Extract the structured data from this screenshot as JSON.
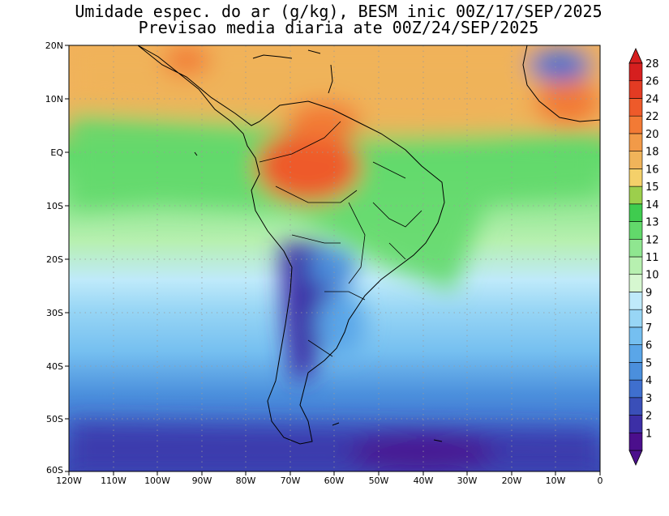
{
  "title": {
    "line1": "Umidade espec. do ar (g/kg), BESM inic 00Z/17/SEP/2025",
    "line2": "Previsao media diaria ate 00Z/24/SEP/2025"
  },
  "map": {
    "lon_range": [
      -120,
      0
    ],
    "lat_range": [
      -60,
      20
    ],
    "grid": "dotted",
    "lat_labels": [
      "20N",
      "10N",
      "EQ",
      "10S",
      "20S",
      "30S",
      "40S",
      "50S",
      "60S"
    ],
    "lon_labels": [
      "120W",
      "110W",
      "100W",
      "90W",
      "80W",
      "70W",
      "60W",
      "50W",
      "40W",
      "30W",
      "20W",
      "10W",
      "0"
    ]
  },
  "colorbar": {
    "labels": [
      "1",
      "2",
      "3",
      "4",
      "5",
      "6",
      "7",
      "8",
      "9",
      "10",
      "11",
      "12",
      "13",
      "14",
      "15",
      "16",
      "18",
      "20",
      "22",
      "24",
      "26",
      "28"
    ],
    "colors": [
      "#4b0f8c",
      "#3c2fa6",
      "#3a4fb8",
      "#3f6fce",
      "#4b8fdc",
      "#5aa6e8",
      "#75bff0",
      "#98d6f5",
      "#bfeafa",
      "#d6f7d0",
      "#b7f0b0",
      "#8fe690",
      "#62d96b",
      "#3fcc4f",
      "#9ccf4c",
      "#f4d06a",
      "#f0b45a",
      "#f29a48",
      "#f27a35",
      "#ee5a2a",
      "#e33b23",
      "#d61f1f"
    ]
  }
}
